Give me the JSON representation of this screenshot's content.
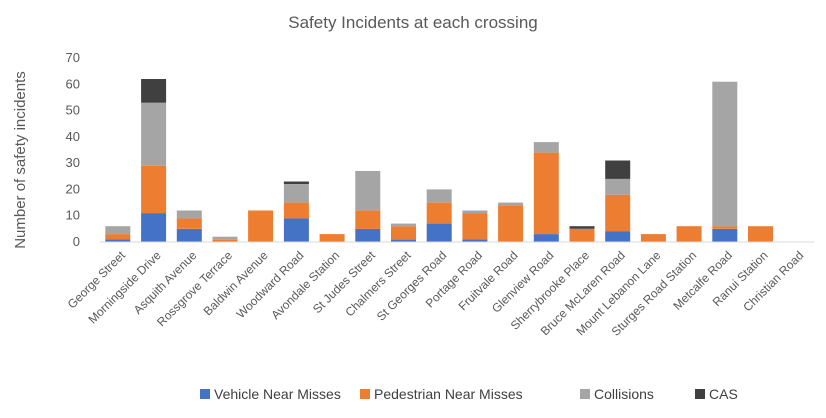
{
  "chart_data": {
    "type": "bar",
    "stacked": true,
    "title": "Safety Incidents at each crossing",
    "xlabel": "",
    "ylabel": "Number of safety incidents",
    "ylim": [
      0,
      70
    ],
    "yticks": [
      0,
      10,
      20,
      30,
      40,
      50,
      60,
      70
    ],
    "grid": false,
    "legend_position": "bottom",
    "categories": [
      "George Street",
      "Morningside Drive",
      "Asquith Avenue",
      "Rossgrove Terrace",
      "Baldwin Avenue",
      "Woodward Road",
      "Avondale Station",
      "St Judes Street",
      "Chalmers Street",
      "St Georges Road",
      "Portage Road",
      "Fruitvale Road",
      "Glenview Road",
      "Sherrybrooke Place",
      "Bruce McLaren Road",
      "Mount Lebanon Lane",
      "Sturges Road Station",
      "Metcalfe Road",
      "Ranui Station",
      "Christian Road"
    ],
    "series": [
      {
        "name": "Vehicle Near Misses",
        "color": "#4472C4",
        "values": [
          1,
          11,
          5,
          0,
          0,
          9,
          0,
          5,
          1,
          7,
          1,
          0,
          3,
          0,
          4,
          0,
          0,
          5,
          0,
          0
        ]
      },
      {
        "name": "Pedestrian Near Misses",
        "color": "#ED7D31",
        "values": [
          2,
          18,
          4,
          1,
          12,
          6,
          3,
          7,
          5,
          8,
          10,
          14,
          31,
          5,
          14,
          3,
          6,
          1,
          6,
          0
        ]
      },
      {
        "name": "Collisions",
        "color": "#A5A5A5",
        "values": [
          3,
          24,
          3,
          1,
          0,
          7,
          0,
          15,
          1,
          5,
          1,
          1,
          4,
          0,
          6,
          0,
          0,
          55,
          0,
          0
        ]
      },
      {
        "name": "CAS",
        "color": "#404040",
        "values": [
          0,
          9,
          0,
          0,
          0,
          1,
          0,
          0,
          0,
          0,
          0,
          0,
          0,
          1,
          7,
          0,
          0,
          0,
          0,
          0
        ]
      }
    ]
  }
}
